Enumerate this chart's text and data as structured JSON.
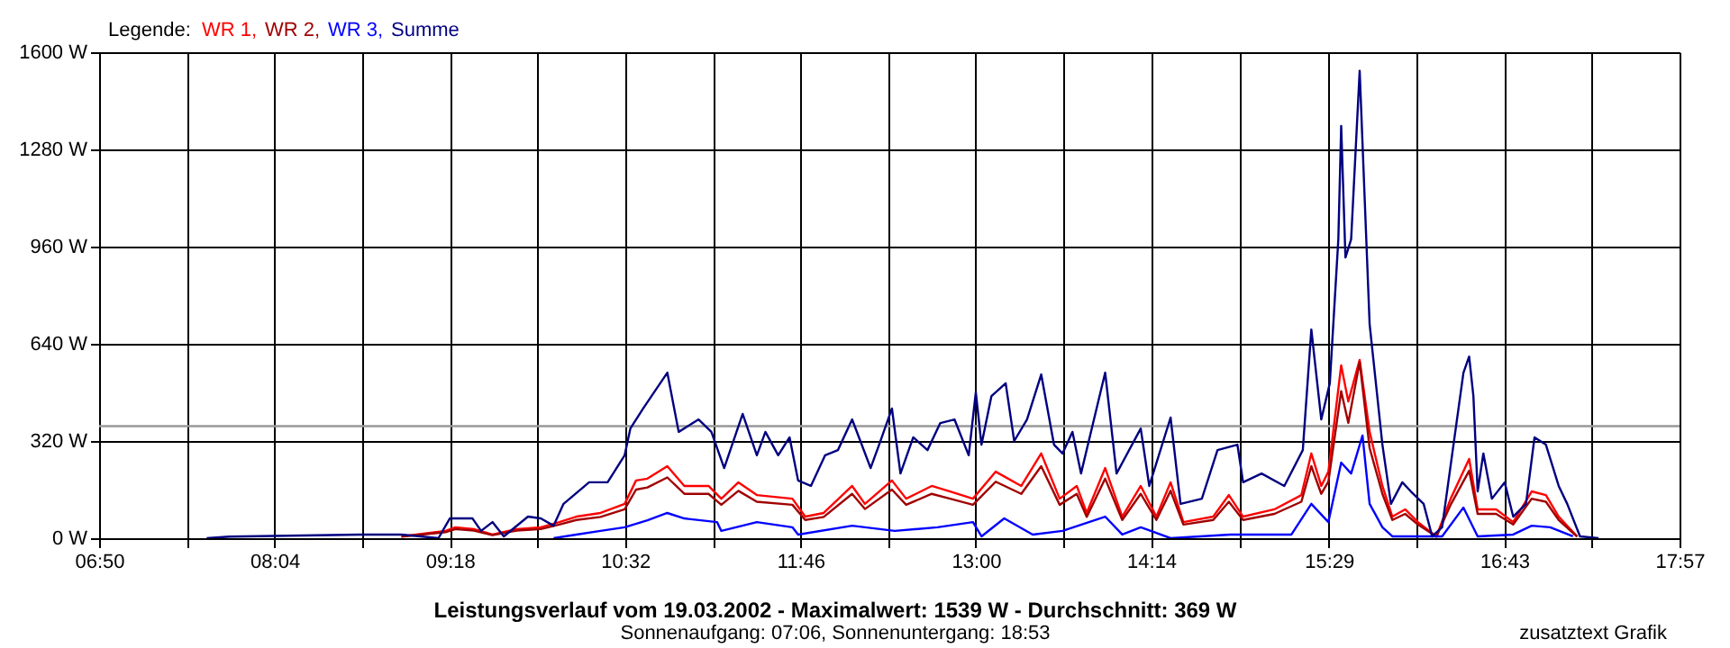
{
  "chart_data": {
    "type": "line",
    "title": "Leistungsverlauf vom 19.03.2002 - Maximalwert: 1539 W - Durchschnitt: 369 W",
    "subtitle": "Sonnenaufgang: 07:06, Sonnenuntergang: 18:53",
    "legend_title": "Legende:",
    "annotations": [
      "zusatztext Grafik"
    ],
    "xlim": [
      6.8333,
      17.95
    ],
    "xticks": [
      {
        "value": 6.8333,
        "label": "06:50"
      },
      {
        "value": 7.45,
        "label": null
      },
      {
        "value": 8.0667,
        "label": "08:04"
      },
      {
        "value": 8.6833,
        "label": null
      },
      {
        "value": 9.3,
        "label": "09:18"
      },
      {
        "value": 9.9167,
        "label": null
      },
      {
        "value": 10.5333,
        "label": "10:32"
      },
      {
        "value": 11.15,
        "label": null
      },
      {
        "value": 11.7667,
        "label": "11:46"
      },
      {
        "value": 12.3833,
        "label": null
      },
      {
        "value": 13.0,
        "label": "13:00"
      },
      {
        "value": 13.6167,
        "label": null
      },
      {
        "value": 14.2333,
        "label": "14:14"
      },
      {
        "value": 14.8583,
        "label": null
      },
      {
        "value": 15.4833,
        "label": "15:29"
      },
      {
        "value": 16.1,
        "label": null
      },
      {
        "value": 16.7167,
        "label": "16:43"
      },
      {
        "value": 17.3333,
        "label": null
      },
      {
        "value": 17.95,
        "label": "17:57"
      }
    ],
    "ylim": [
      0,
      1600
    ],
    "yticks": [
      {
        "value": 0,
        "label": "0 W"
      },
      {
        "value": 320,
        "label": "320 W"
      },
      {
        "value": 640,
        "label": "640 W"
      },
      {
        "value": 960,
        "label": "960 W"
      },
      {
        "value": 1280,
        "label": "1280 W"
      },
      {
        "value": 1600,
        "label": "1600 W"
      }
    ],
    "grid": true,
    "legend": "top left",
    "ref_lines": [
      {
        "axis": "y",
        "value": 369,
        "color": "#999999"
      }
    ],
    "series": [
      {
        "name": "WR 1,",
        "color": "#ff0000",
        "x": [
          8.96,
          9.27,
          9.34,
          9.47,
          9.6,
          9.77,
          9.94,
          10.07,
          10.19,
          10.36,
          10.53,
          10.61,
          10.69,
          10.83,
          10.95,
          11.12,
          11.21,
          11.33,
          11.46,
          11.71,
          11.8,
          11.93,
          12.13,
          12.22,
          12.41,
          12.51,
          12.69,
          12.82,
          12.98,
          13.14,
          13.32,
          13.46,
          13.59,
          13.71,
          13.78,
          13.91,
          14.03,
          14.16,
          14.27,
          14.37,
          14.46,
          14.67,
          14.78,
          14.88,
          15.1,
          15.29,
          15.36,
          15.43,
          15.48,
          15.57,
          15.62,
          15.7,
          15.77,
          15.86,
          15.93,
          16.02,
          16.11,
          16.24,
          16.34,
          16.47,
          16.53,
          16.66,
          16.78,
          16.91,
          17.01,
          17.1,
          17.23
        ],
        "values": [
          6,
          24,
          36,
          30,
          12,
          30,
          36,
          53,
          71,
          83,
          113,
          190,
          196,
          237,
          172,
          172,
          130,
          184,
          142,
          130,
          71,
          83,
          172,
          113,
          190,
          130,
          172,
          154,
          130,
          219,
          172,
          279,
          130,
          172,
          83,
          231,
          71,
          172,
          71,
          184,
          53,
          71,
          142,
          71,
          95,
          142,
          279,
          172,
          219,
          569,
          450,
          587,
          350,
          172,
          71,
          95,
          53,
          6,
          130,
          261,
          95,
          95,
          53,
          154,
          142,
          71,
          6
        ]
      },
      {
        "name": "WR 2,",
        "color": "#a00000",
        "x": [
          8.96,
          9.27,
          9.34,
          9.47,
          9.6,
          9.77,
          9.94,
          10.07,
          10.19,
          10.36,
          10.53,
          10.61,
          10.69,
          10.83,
          10.95,
          11.12,
          11.21,
          11.33,
          11.46,
          11.71,
          11.8,
          11.93,
          12.13,
          12.22,
          12.41,
          12.51,
          12.69,
          12.82,
          12.98,
          13.14,
          13.32,
          13.46,
          13.59,
          13.71,
          13.78,
          13.91,
          14.03,
          14.16,
          14.27,
          14.37,
          14.46,
          14.67,
          14.78,
          14.88,
          15.1,
          15.29,
          15.36,
          15.43,
          15.48,
          15.57,
          15.62,
          15.7,
          15.77,
          15.86,
          15.93,
          16.02,
          16.11,
          16.24,
          16.34,
          16.47,
          16.53,
          16.66,
          16.78,
          16.91,
          17.01,
          17.1,
          17.23
        ],
        "values": [
          5,
          20,
          30,
          25,
          10,
          25,
          30,
          45,
          60,
          70,
          95,
          160,
          167,
          200,
          146,
          146,
          110,
          156,
          120,
          110,
          60,
          70,
          146,
          96,
          160,
          110,
          146,
          130,
          110,
          186,
          146,
          237,
          110,
          146,
          70,
          196,
          60,
          146,
          60,
          156,
          45,
          60,
          120,
          60,
          80,
          120,
          237,
          146,
          186,
          484,
          380,
          580,
          297,
          146,
          60,
          80,
          45,
          5,
          110,
          222,
          80,
          80,
          45,
          130,
          120,
          60,
          5
        ]
      },
      {
        "name": "WR 3,",
        "color": "#0000ff",
        "x": [
          10.03,
          10.19,
          10.36,
          10.53,
          10.69,
          10.83,
          10.95,
          11.18,
          11.21,
          11.46,
          11.71,
          11.75,
          12.13,
          12.43,
          12.73,
          12.98,
          13.04,
          13.2,
          13.4,
          13.61,
          13.91,
          14.03,
          14.16,
          14.37,
          14.79,
          15.22,
          15.36,
          15.48,
          15.57,
          15.64,
          15.72,
          15.77,
          15.86,
          15.93,
          16.28,
          16.43,
          16.53,
          16.78,
          16.91,
          17.04,
          17.2
        ],
        "values": [
          0,
          12,
          24,
          36,
          59,
          83,
          65,
          53,
          24,
          53,
          36,
          12,
          41,
          24,
          36,
          53,
          6,
          65,
          12,
          24,
          71,
          12,
          36,
          0,
          12,
          12,
          113,
          53,
          249,
          213,
          338,
          113,
          36,
          6,
          6,
          101,
          6,
          12,
          41,
          36,
          6
        ]
      },
      {
        "name": "Summe",
        "color": "#000080",
        "x": [
          7.59,
          7.75,
          8.67,
          8.96,
          9.22,
          9.3,
          9.46,
          9.52,
          9.6,
          9.68,
          9.85,
          9.94,
          10.03,
          10.1,
          10.28,
          10.41,
          10.53,
          10.57,
          10.66,
          10.83,
          10.91,
          11.05,
          11.14,
          11.23,
          11.36,
          11.46,
          11.52,
          11.61,
          11.69,
          11.75,
          11.84,
          11.94,
          12.03,
          12.13,
          12.26,
          12.32,
          12.41,
          12.47,
          12.56,
          12.66,
          12.75,
          12.85,
          12.95,
          13.0,
          13.04,
          13.11,
          13.21,
          13.27,
          13.36,
          13.46,
          13.55,
          13.61,
          13.68,
          13.74,
          13.91,
          13.99,
          14.16,
          14.22,
          14.37,
          14.44,
          14.59,
          14.7,
          14.84,
          14.88,
          15.01,
          15.17,
          15.3,
          15.36,
          15.43,
          15.49,
          15.55,
          15.57,
          15.6,
          15.64,
          15.7,
          15.77,
          15.86,
          15.92,
          16.0,
          16.06,
          16.15,
          16.21,
          16.28,
          16.36,
          16.43,
          16.47,
          16.5,
          16.53,
          16.57,
          16.63,
          16.72,
          16.78,
          16.87,
          16.93,
          17.01,
          17.1,
          17.16,
          17.25,
          17.38
        ],
        "values": [
          0,
          5,
          12,
          12,
          0,
          65,
          65,
          24,
          53,
          6,
          71,
          65,
          41,
          113,
          184,
          184,
          273,
          361,
          427,
          545,
          350,
          391,
          350,
          231,
          409,
          273,
          350,
          273,
          332,
          190,
          172,
          273,
          290,
          391,
          231,
          308,
          427,
          213,
          332,
          290,
          379,
          391,
          273,
          480,
          308,
          468,
          510,
          320,
          391,
          539,
          308,
          279,
          350,
          213,
          545,
          213,
          361,
          172,
          397,
          113,
          130,
          290,
          308,
          184,
          213,
          172,
          290,
          687,
          391,
          510,
          984,
          1357,
          924,
          984,
          1539,
          705,
          308,
          113,
          184,
          154,
          113,
          6,
          36,
          308,
          545,
          598,
          468,
          154,
          279,
          130,
          184,
          71,
          113,
          332,
          308,
          172,
          113,
          6,
          0
        ]
      }
    ]
  }
}
